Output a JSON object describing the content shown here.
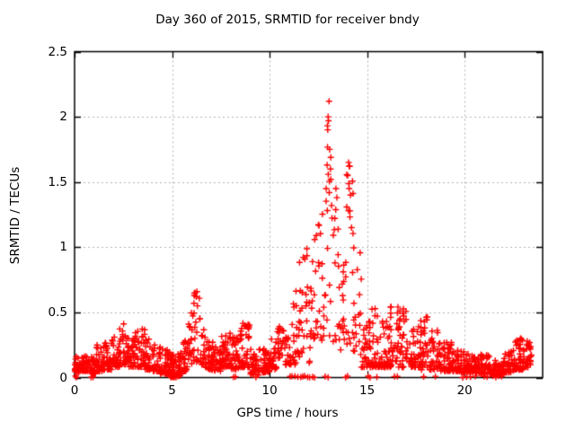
{
  "chart_data": {
    "type": "scatter",
    "title": "Day 360 of 2015, SRMTID for receiver bndy",
    "xlabel": "GPS time / hours",
    "ylabel": "SRMTID / TECUs",
    "xlim": [
      0,
      24
    ],
    "ylim": [
      0,
      2.5
    ],
    "x_ticks": [
      {
        "value": 0,
        "label": "0"
      },
      {
        "value": 5,
        "label": "5"
      },
      {
        "value": 10,
        "label": "10"
      },
      {
        "value": 15,
        "label": "15"
      },
      {
        "value": 20,
        "label": "20"
      }
    ],
    "y_ticks": [
      {
        "value": 0,
        "label": "0"
      },
      {
        "value": 0.5,
        "label": "0.5"
      },
      {
        "value": 1,
        "label": "1"
      },
      {
        "value": 1.5,
        "label": "1.5"
      },
      {
        "value": 2,
        "label": "2"
      },
      {
        "value": 2.5,
        "label": "2.5"
      }
    ],
    "grid": {
      "on": true,
      "style": "dotted",
      "color": "#b2b2b2"
    },
    "marker": {
      "glyph": "+",
      "color": "#ff0000",
      "size": 7,
      "stroke": 1.4
    },
    "frame_color": "#000000",
    "series_name": "SRMTID",
    "density_bands": [
      [
        0.0,
        0.3,
        0.04,
        0.2,
        80,
        2.0
      ],
      [
        0.3,
        0.7,
        0.05,
        0.18,
        80,
        2.0
      ],
      [
        0.7,
        1.1,
        0.03,
        0.22,
        80,
        2.0
      ],
      [
        1.1,
        1.5,
        0.05,
        0.25,
        80,
        2.0
      ],
      [
        1.5,
        1.9,
        0.06,
        0.28,
        80,
        2.0
      ],
      [
        1.9,
        2.3,
        0.08,
        0.32,
        80,
        2.0
      ],
      [
        2.3,
        2.8,
        0.1,
        0.42,
        80,
        2.0
      ],
      [
        2.8,
        3.1,
        0.08,
        0.3,
        80,
        2.0
      ],
      [
        3.1,
        3.6,
        0.08,
        0.38,
        80,
        2.0
      ],
      [
        3.6,
        4.0,
        0.06,
        0.3,
        80,
        2.0
      ],
      [
        4.0,
        4.4,
        0.05,
        0.25,
        80,
        2.0
      ],
      [
        4.4,
        4.9,
        0.03,
        0.22,
        85,
        2.0
      ],
      [
        4.9,
        5.5,
        0.01,
        0.2,
        90,
        2.0
      ],
      [
        5.5,
        5.8,
        0.05,
        0.3,
        80,
        2.0
      ],
      [
        5.8,
        6.1,
        0.1,
        0.5,
        60,
        1.6
      ],
      [
        6.1,
        6.45,
        0.12,
        0.66,
        55,
        1.5
      ],
      [
        6.45,
        6.7,
        0.1,
        0.45,
        65,
        1.8
      ],
      [
        6.7,
        7.1,
        0.06,
        0.3,
        80,
        2.0
      ],
      [
        7.1,
        7.5,
        0.05,
        0.25,
        80,
        2.0
      ],
      [
        7.5,
        7.9,
        0.08,
        0.32,
        80,
        2.0
      ],
      [
        7.9,
        8.4,
        0.06,
        0.35,
        80,
        2.0
      ],
      [
        8.4,
        9.0,
        0.08,
        0.42,
        78,
        2.0
      ],
      [
        9.0,
        9.5,
        0.02,
        0.22,
        78,
        2.0
      ],
      [
        9.5,
        10.0,
        0.04,
        0.22,
        78,
        2.0
      ],
      [
        10.0,
        10.35,
        0.06,
        0.3,
        75,
        2.0
      ],
      [
        10.35,
        10.75,
        0.15,
        0.55,
        60,
        1.8
      ],
      [
        10.75,
        11.05,
        0.1,
        0.45,
        65,
        1.8
      ],
      [
        11.05,
        11.45,
        0.1,
        0.75,
        55,
        1.7
      ],
      [
        11.45,
        11.85,
        0.15,
        0.95,
        52,
        1.6
      ],
      [
        11.85,
        12.3,
        0.1,
        1.05,
        54,
        1.6
      ],
      [
        12.3,
        12.6,
        0.2,
        1.2,
        48,
        1.5
      ],
      [
        12.6,
        12.95,
        0.25,
        1.8,
        42,
        1.4
      ],
      [
        12.95,
        13.25,
        0.3,
        2.12,
        42,
        1.3
      ],
      [
        13.25,
        13.6,
        0.25,
        1.45,
        44,
        1.5
      ],
      [
        13.6,
        13.95,
        0.2,
        1.05,
        48,
        1.6
      ],
      [
        13.95,
        14.3,
        0.25,
        1.65,
        42,
        1.4
      ],
      [
        14.3,
        14.7,
        0.15,
        1.0,
        48,
        1.7
      ],
      [
        14.7,
        15.1,
        0.08,
        0.45,
        65,
        1.9
      ],
      [
        15.1,
        15.6,
        0.08,
        0.55,
        65,
        1.9
      ],
      [
        15.6,
        16.2,
        0.08,
        0.45,
        70,
        2.0
      ],
      [
        16.2,
        16.65,
        0.08,
        0.56,
        65,
        1.8
      ],
      [
        16.65,
        17.15,
        0.08,
        0.56,
        65,
        1.8
      ],
      [
        17.15,
        17.75,
        0.08,
        0.4,
        70,
        2.0
      ],
      [
        17.75,
        18.2,
        0.06,
        0.55,
        65,
        1.8
      ],
      [
        18.2,
        18.75,
        0.06,
        0.38,
        70,
        2.0
      ],
      [
        18.75,
        19.5,
        0.05,
        0.28,
        78,
        2.0
      ],
      [
        19.5,
        20.5,
        0.04,
        0.22,
        78,
        2.0
      ],
      [
        20.5,
        21.3,
        0.03,
        0.18,
        78,
        2.0
      ],
      [
        21.3,
        22.0,
        0.02,
        0.14,
        78,
        2.2
      ],
      [
        22.0,
        22.5,
        0.04,
        0.2,
        78,
        2.0
      ],
      [
        22.5,
        23.1,
        0.06,
        0.3,
        78,
        2.0
      ],
      [
        23.1,
        23.45,
        0.08,
        0.28,
        78,
        2.0
      ]
    ],
    "zero_value_hours": [
      0.05,
      0.1,
      0.85,
      0.95,
      4.9,
      4.95,
      5.0,
      5.05,
      5.1,
      5.2,
      5.3,
      8.15,
      8.25,
      9.3,
      11.05,
      11.15,
      11.3,
      11.45,
      11.6,
      11.7,
      11.8,
      11.95,
      12.05,
      12.2,
      12.3,
      12.85,
      13.0,
      13.9,
      14.0,
      15.05,
      15.15,
      15.5,
      16.4,
      16.55,
      17.9,
      18.5,
      19.9,
      20.1,
      20.3,
      20.55,
      21.0,
      21.15,
      21.45,
      21.6,
      21.75,
      21.9
    ],
    "notable_points": [
      [
        0.02,
        0.1
      ],
      [
        6.12,
        0.57
      ],
      [
        6.18,
        0.65
      ],
      [
        6.24,
        0.62
      ],
      [
        6.3,
        0.55
      ],
      [
        12.9,
        1.45
      ],
      [
        12.95,
        1.63
      ],
      [
        12.98,
        1.9
      ],
      [
        13.0,
        2.0
      ],
      [
        13.02,
        1.97
      ],
      [
        13.05,
        2.12
      ],
      [
        13.08,
        1.75
      ],
      [
        13.12,
        1.6
      ],
      [
        13.18,
        1.32
      ],
      [
        13.4,
        1.45
      ],
      [
        13.45,
        1.38
      ],
      [
        14.0,
        1.55
      ],
      [
        14.05,
        1.65
      ],
      [
        14.08,
        1.45
      ],
      [
        14.1,
        1.62
      ],
      [
        14.15,
        1.4
      ],
      [
        14.05,
        1.28
      ],
      [
        14.2,
        1.15
      ]
    ]
  }
}
